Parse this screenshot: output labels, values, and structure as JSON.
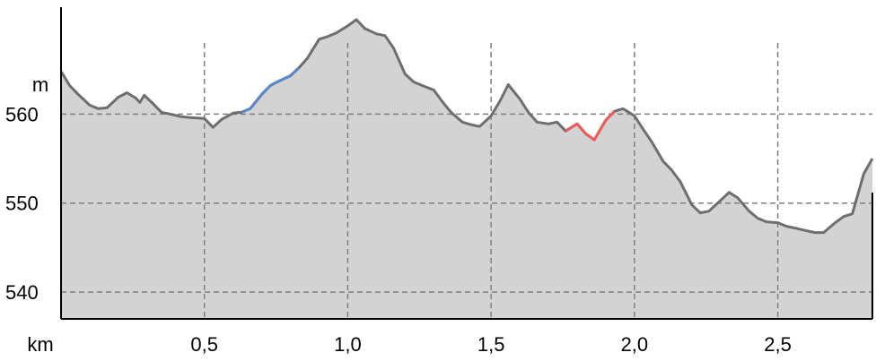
{
  "chart_data": {
    "type": "area",
    "xlabel": "km",
    "ylabel": "m",
    "xlim": [
      0,
      2.83
    ],
    "ylim": [
      537,
      572
    ],
    "x_ticks": [
      {
        "value": 0.5,
        "label": "0,5"
      },
      {
        "value": 1.0,
        "label": "1,0"
      },
      {
        "value": 1.5,
        "label": "1,5"
      },
      {
        "value": 2.0,
        "label": "2,0"
      },
      {
        "value": 2.5,
        "label": "2,5"
      }
    ],
    "y_ticks": [
      {
        "value": 540,
        "label": "540"
      },
      {
        "value": 550,
        "label": "550"
      },
      {
        "value": 560,
        "label": "560"
      }
    ],
    "grid": true,
    "series": [
      {
        "x": [
          0,
          0.03,
          0.06,
          0.1,
          0.13,
          0.16,
          0.2,
          0.23,
          0.26,
          0.275,
          0.29,
          0.32,
          0.35,
          0.38,
          0.42,
          0.45,
          0.5,
          0.53,
          0.56,
          0.6,
          0.63,
          0.66,
          0.7,
          0.73,
          0.76,
          0.8,
          0.83,
          0.86,
          0.9,
          0.93,
          0.96,
          1.0,
          1.03,
          1.06,
          1.1,
          1.13,
          1.16,
          1.2,
          1.23,
          1.26,
          1.3,
          1.33,
          1.36,
          1.4,
          1.43,
          1.46,
          1.5,
          1.53,
          1.56,
          1.6,
          1.63,
          1.66,
          1.7,
          1.73,
          1.76,
          1.8,
          1.83,
          1.86,
          1.9,
          1.93,
          1.96,
          2.0,
          2.03,
          2.06,
          2.1,
          2.13,
          2.16,
          2.2,
          2.23,
          2.26,
          2.3,
          2.33,
          2.36,
          2.4,
          2.43,
          2.46,
          2.5,
          2.53,
          2.56,
          2.6,
          2.63,
          2.66,
          2.7,
          2.73,
          2.76,
          2.8,
          2.83
        ],
        "y": [
          564.8,
          563.2,
          562.2,
          561,
          560.6,
          560.7,
          561.9,
          562.4,
          561.8,
          561.3,
          562.1,
          561.2,
          560.2,
          560,
          559.7,
          559.6,
          559.5,
          558.5,
          559.4,
          560.1,
          560.2,
          560.6,
          562.2,
          563.2,
          563.7,
          564.3,
          565.2,
          566.3,
          568.4,
          568.7,
          569.1,
          569.9,
          570.6,
          569.6,
          569,
          568.8,
          567.4,
          564.5,
          563.6,
          563.2,
          562.7,
          561.4,
          560.2,
          559.1,
          558.8,
          558.6,
          559.8,
          561.4,
          563.3,
          561.7,
          560.2,
          559.1,
          558.9,
          559.1,
          558.1,
          558.9,
          557.8,
          557.1,
          559.3,
          560.3,
          560.6,
          559.8,
          558.3,
          556.9,
          554.7,
          553.7,
          552.4,
          549.8,
          548.9,
          549.1,
          550.3,
          551.2,
          550.6,
          549.1,
          548.3,
          547.9,
          547.8,
          547.4,
          547.2,
          546.9,
          546.7,
          546.7,
          547.8,
          548.5,
          548.8,
          553.3,
          555
        ]
      }
    ],
    "highlights": [
      {
        "x_start": 0.62,
        "x_end": 0.84,
        "color": "#5b86c8"
      },
      {
        "x_start": 1.76,
        "x_end": 1.93,
        "color": "#f05a5a"
      }
    ],
    "colors": {
      "fill": "#d3d3d3",
      "line": "#6e6e6e",
      "grid": "#808080",
      "axis": "#000000"
    }
  }
}
